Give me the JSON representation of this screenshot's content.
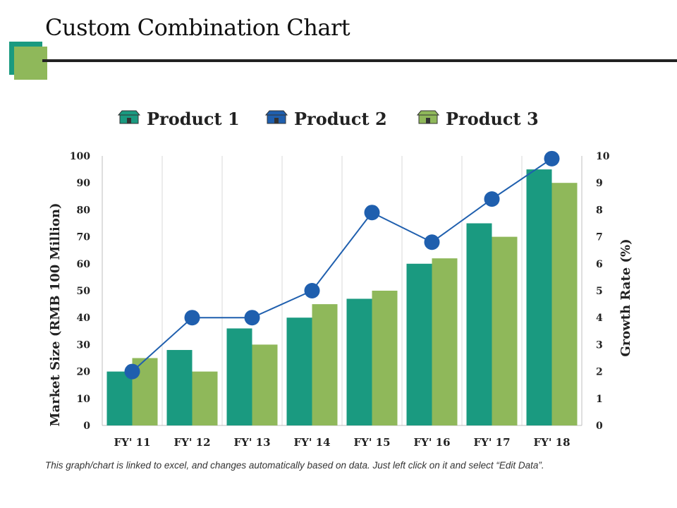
{
  "page": {
    "title": "Custom Combination Chart",
    "footer": "This graph/chart is linked to excel, and changes automatically based on data. Just left click on it and select “Edit Data”."
  },
  "colors": {
    "product1": "#1a9a80",
    "product2": "#1f5fae",
    "product3": "#8fb85a",
    "grid": "#d9d9d9",
    "text": "#222222"
  },
  "chart_data": {
    "type": "bar",
    "categories": [
      "FY' 11",
      "FY' 12",
      "FY' 13",
      "FY' 14",
      "FY' 15",
      "FY' 16",
      "FY' 17",
      "FY' 18"
    ],
    "series": [
      {
        "name": "Product 1",
        "kind": "bar",
        "axis": "left",
        "values": [
          20,
          28,
          36,
          40,
          47,
          60,
          75,
          95
        ]
      },
      {
        "name": "Product 2",
        "kind": "line",
        "axis": "right",
        "values": [
          2,
          4,
          4,
          5,
          7.9,
          6.8,
          8.4,
          9.9
        ]
      },
      {
        "name": "Product 3",
        "kind": "bar",
        "axis": "left",
        "values": [
          25,
          20,
          30,
          45,
          50,
          62,
          70,
          90
        ]
      }
    ],
    "ylabel": "Market Size (RMB 100 Million)",
    "y2label": "Growth Rate (%)",
    "ylim": [
      0,
      100
    ],
    "yticks": [
      0,
      10,
      20,
      30,
      40,
      50,
      60,
      70,
      80,
      90,
      100
    ],
    "y2lim": [
      0,
      10
    ],
    "y2ticks": [
      0,
      1,
      2,
      3,
      4,
      5,
      6,
      7,
      8,
      9,
      10
    ],
    "legend_position": "top",
    "grid": "vertical"
  }
}
